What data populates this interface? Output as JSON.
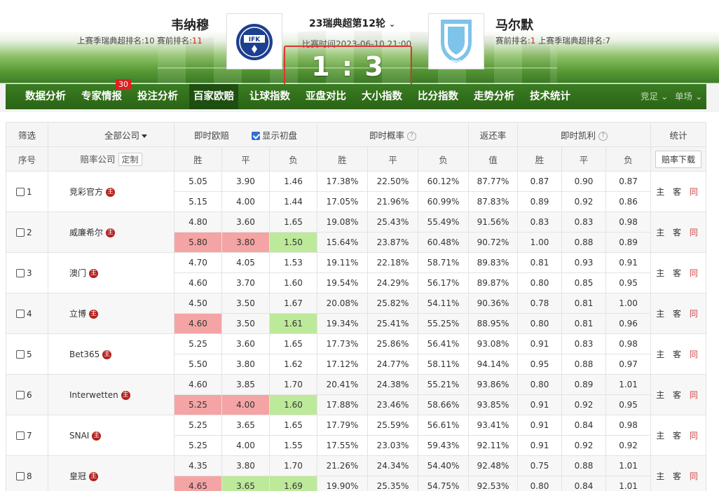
{
  "match": {
    "home": {
      "name": "韦纳穆",
      "rank_prefix": "上赛季瑞典超排名:10  赛前排名:",
      "rank_value": "11",
      "logo": "IFK"
    },
    "away": {
      "name": "马尔默",
      "rank_prefix": "赛前排名:",
      "rank_value": "1",
      "rank_suffix": "  上赛季瑞典超排名:7",
      "logo": "Malmö FF"
    },
    "round": "23瑞典超第12轮",
    "time": "比赛时间2023-06-10 21:00",
    "score": "1 : 3"
  },
  "nav": {
    "items": [
      "数据分析",
      "专家情报",
      "投注分析",
      "百家欧赔",
      "让球指数",
      "亚盘对比",
      "大小指数",
      "比分指数",
      "走势分析",
      "技术统计"
    ],
    "badge": "30",
    "right": [
      "竞足",
      "单场"
    ]
  },
  "table": {
    "header1": {
      "filter": "筛选",
      "company_filter": "全部公司",
      "instant_odds": "即时欧赔",
      "show_initial": "显示初盘",
      "instant_prob": "即时概率",
      "return_rate": "返还率",
      "kelly": "即时凯利",
      "stats": "统计"
    },
    "header2": {
      "idx": "序号",
      "company": "赔率公司",
      "custom": "定制",
      "win": "胜",
      "draw": "平",
      "lose": "负",
      "pwin": "胜",
      "pdraw": "平",
      "plose": "负",
      "value": "值",
      "kwin": "胜",
      "kdraw": "平",
      "klose": "负",
      "download": "赔率下载"
    },
    "stats_labels": {
      "home": "主",
      "away": "客",
      "same": "同"
    },
    "colors": {
      "red_bg": "#f4a4a4",
      "green_bg": "#bde99a",
      "red_text": "#d31c1c",
      "green_text": "#2a8a12"
    },
    "rows": [
      {
        "idx": "1",
        "company": "竞彩官方",
        "initial": [
          "5.05",
          "3.90",
          "1.46"
        ],
        "current": [
          "5.15",
          "4.00",
          "1.44"
        ],
        "current_bg": [
          "r",
          "r",
          "g"
        ],
        "prob_init": [
          "17.38%",
          "22.50%",
          "60.12%"
        ],
        "prob_cur": [
          "17.05%",
          "21.96%",
          "60.99%"
        ],
        "ret": [
          "87.77%",
          "87.83%"
        ],
        "kelly_init": [
          "0.87",
          "0.90",
          "0.87"
        ],
        "kelly_cur": [
          "0.89",
          "0.92",
          "0.86"
        ],
        "kelly_color": [
          "r",
          "r",
          "g"
        ]
      },
      {
        "idx": "2",
        "company": "威廉希尔",
        "initial": [
          "4.80",
          "3.60",
          "1.65"
        ],
        "current": [
          "5.80",
          "3.80",
          "1.50"
        ],
        "current_bg": [
          "r",
          "r",
          "g"
        ],
        "prob_init": [
          "19.08%",
          "25.43%",
          "55.49%"
        ],
        "prob_cur": [
          "15.64%",
          "23.87%",
          "60.48%"
        ],
        "ret": [
          "91.56%",
          "90.72%"
        ],
        "kelly_init": [
          "0.83",
          "0.83",
          "0.98"
        ],
        "kelly_cur": [
          "1.00",
          "0.88",
          "0.89"
        ],
        "kelly_color": [
          "r",
          "r",
          "g"
        ]
      },
      {
        "idx": "3",
        "company": "澳门",
        "initial": [
          "4.70",
          "4.05",
          "1.53"
        ],
        "current": [
          "4.60",
          "3.70",
          "1.60"
        ],
        "current_bg": [
          "g",
          "g",
          "r"
        ],
        "prob_init": [
          "19.11%",
          "22.18%",
          "58.71%"
        ],
        "prob_cur": [
          "19.54%",
          "24.29%",
          "56.17%"
        ],
        "ret": [
          "89.83%",
          "89.87%"
        ],
        "kelly_init": [
          "0.81",
          "0.93",
          "0.91"
        ],
        "kelly_cur": [
          "0.80",
          "0.85",
          "0.95"
        ],
        "kelly_color": [
          "g",
          "g",
          "r"
        ]
      },
      {
        "idx": "4",
        "company": "立博",
        "initial": [
          "4.50",
          "3.50",
          "1.67"
        ],
        "current": [
          "4.60",
          "3.50",
          "1.61"
        ],
        "current_bg": [
          "r",
          "",
          "g"
        ],
        "prob_init": [
          "20.08%",
          "25.82%",
          "54.11%"
        ],
        "prob_cur": [
          "19.34%",
          "25.41%",
          "55.25%"
        ],
        "ret": [
          "90.36%",
          "88.95%"
        ],
        "kelly_init": [
          "0.78",
          "0.81",
          "1.00"
        ],
        "kelly_cur": [
          "0.80",
          "0.81",
          "0.96"
        ],
        "kelly_color": [
          "r",
          "",
          "g"
        ]
      },
      {
        "idx": "5",
        "company": "Bet365",
        "initial": [
          "5.25",
          "3.60",
          "1.65"
        ],
        "current": [
          "5.50",
          "3.80",
          "1.62"
        ],
        "current_bg": [
          "r",
          "r",
          "g"
        ],
        "prob_init": [
          "17.73%",
          "25.86%",
          "56.41%"
        ],
        "prob_cur": [
          "17.12%",
          "24.77%",
          "58.11%"
        ],
        "ret": [
          "93.08%",
          "94.14%"
        ],
        "kelly_init": [
          "0.91",
          "0.83",
          "0.98"
        ],
        "kelly_cur": [
          "0.95",
          "0.88",
          "0.97"
        ],
        "kelly_color": [
          "r",
          "r",
          "g"
        ]
      },
      {
        "idx": "6",
        "company": "Interwetten",
        "initial": [
          "4.60",
          "3.85",
          "1.70"
        ],
        "current": [
          "5.25",
          "4.00",
          "1.60"
        ],
        "current_bg": [
          "r",
          "r",
          "g"
        ],
        "prob_init": [
          "20.41%",
          "24.38%",
          "55.21%"
        ],
        "prob_cur": [
          "17.88%",
          "23.46%",
          "58.66%"
        ],
        "ret": [
          "93.86%",
          "93.85%"
        ],
        "kelly_init": [
          "0.80",
          "0.89",
          "1.01"
        ],
        "kelly_cur": [
          "0.91",
          "0.92",
          "0.95"
        ],
        "kelly_color": [
          "r",
          "r",
          "g"
        ]
      },
      {
        "idx": "7",
        "company": "SNAI",
        "initial": [
          "5.25",
          "3.65",
          "1.65"
        ],
        "current": [
          "5.25",
          "4.00",
          "1.55"
        ],
        "current_bg": [
          "",
          "r",
          "g"
        ],
        "prob_init": [
          "17.79%",
          "25.59%",
          "56.61%"
        ],
        "prob_cur": [
          "17.55%",
          "23.03%",
          "59.43%"
        ],
        "ret": [
          "93.41%",
          "92.11%"
        ],
        "kelly_init": [
          "0.91",
          "0.84",
          "0.98"
        ],
        "kelly_cur": [
          "0.91",
          "0.92",
          "0.92"
        ],
        "kelly_color": [
          "",
          "r",
          "g"
        ]
      },
      {
        "idx": "8",
        "company": "皇冠",
        "initial": [
          "4.35",
          "3.80",
          "1.70"
        ],
        "current": [
          "4.65",
          "3.65",
          "1.69"
        ],
        "current_bg": [
          "r",
          "g",
          "g"
        ],
        "prob_init": [
          "21.26%",
          "24.34%",
          "54.40%"
        ],
        "prob_cur": [
          "19.90%",
          "25.35%",
          "54.75%"
        ],
        "ret": [
          "92.48%",
          "92.53%"
        ],
        "kelly_init": [
          "0.75",
          "0.88",
          "1.01"
        ],
        "kelly_cur": [
          "0.80",
          "0.84",
          "1.01"
        ],
        "kelly_color": [
          "r",
          "g",
          ""
        ]
      }
    ]
  }
}
